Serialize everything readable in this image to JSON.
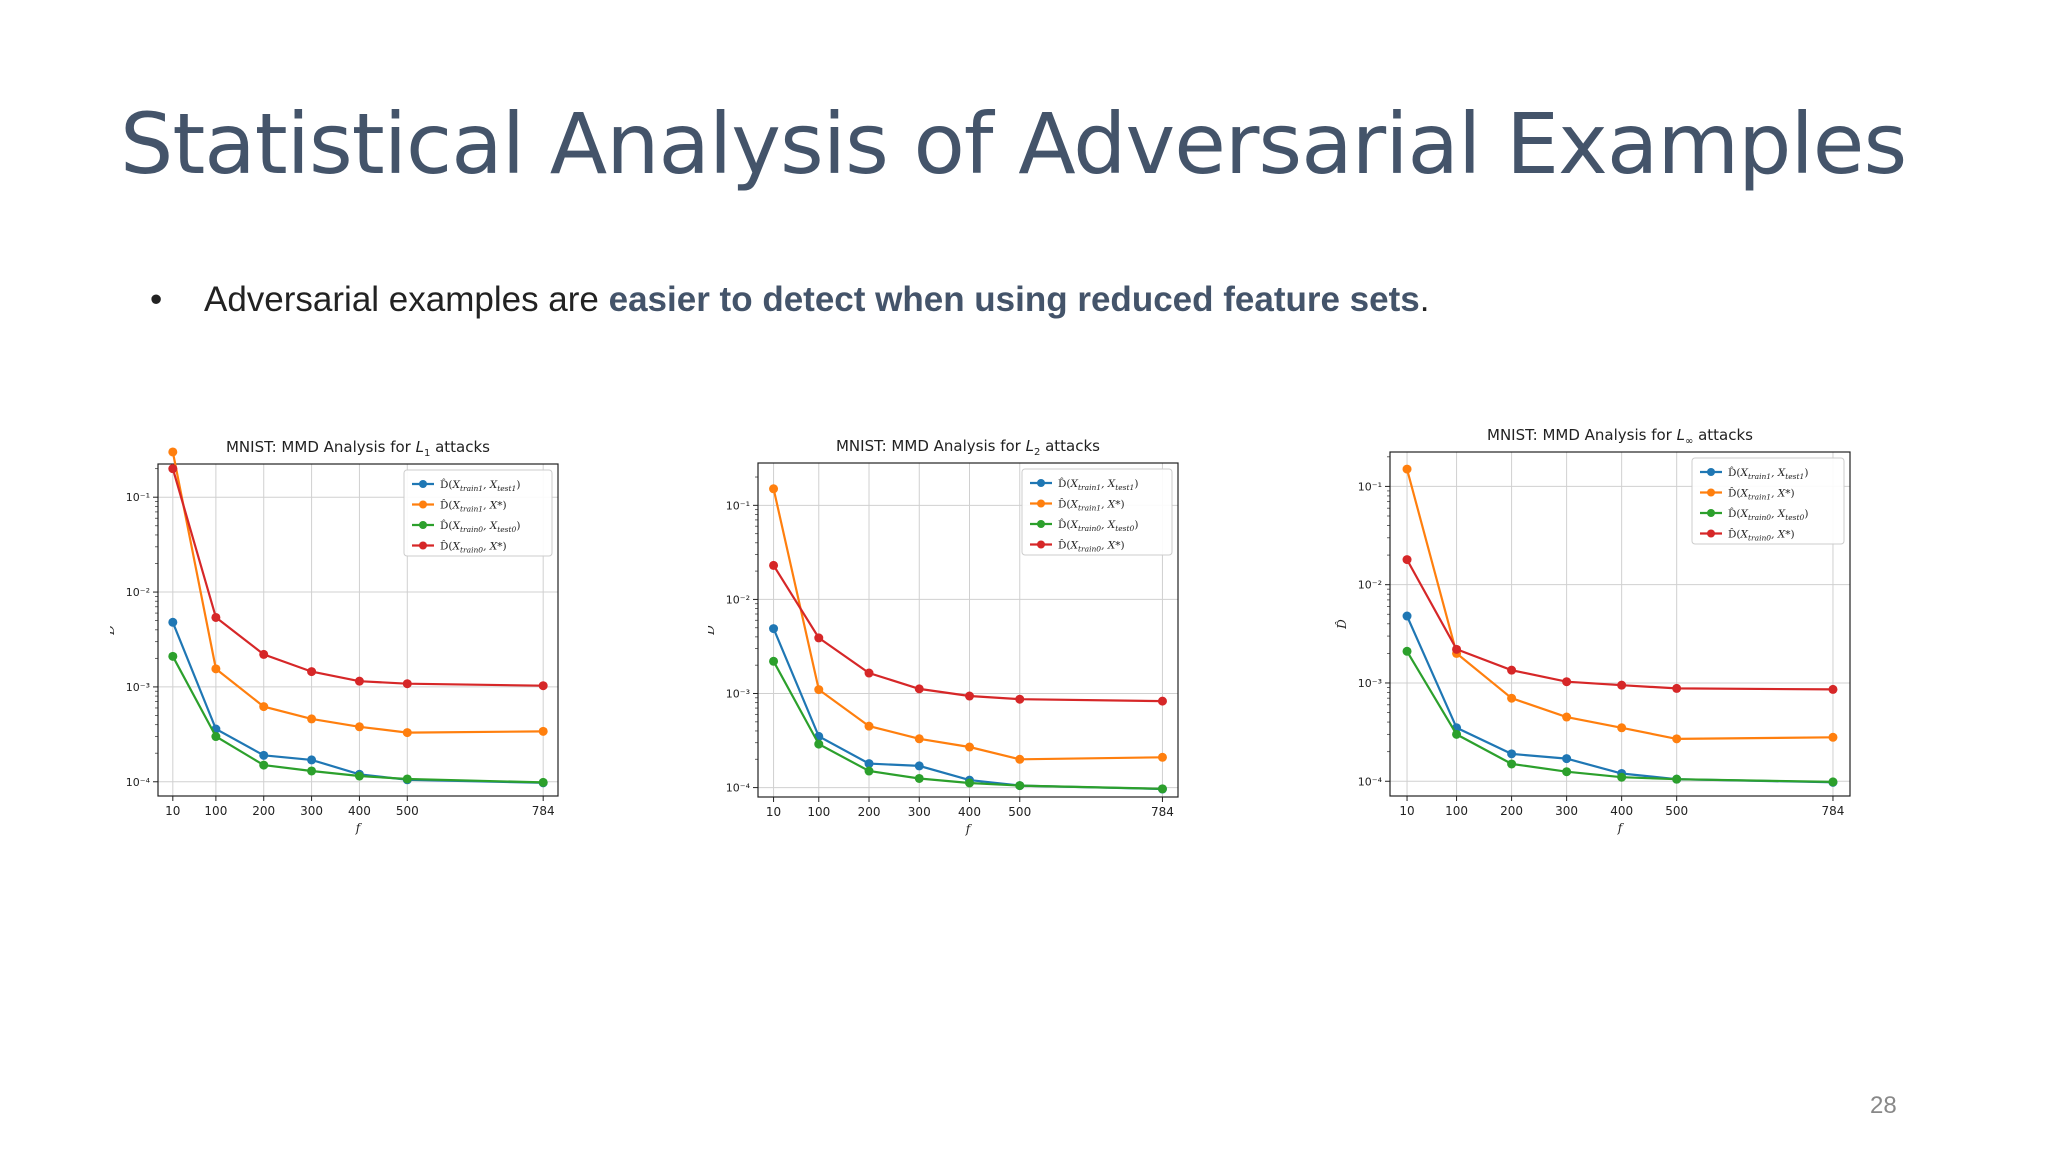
{
  "slide": {
    "title": "Statistical Analysis of Adversarial Examples",
    "bullet_prefix": "Adversarial examples are ",
    "bullet_emphasis": "easier to detect when using reduced feature sets",
    "bullet_suffix": ".",
    "bullet_marker": "•",
    "page_number": "28"
  },
  "colors": {
    "title": "#44546a",
    "series": [
      "#1f77b4",
      "#ff7f0e",
      "#2ca02c",
      "#d62728"
    ]
  },
  "chart_data": [
    {
      "type": "line",
      "title_prefix": "MNIST: MMD Analysis for ",
      "title_math": "L",
      "title_sub": "1",
      "title_suffix": " attacks",
      "xlabel": "f",
      "ylabel": "D̂",
      "x": [
        10,
        100,
        200,
        300,
        400,
        500,
        784
      ],
      "xticks": [
        "10",
        "100",
        "200",
        "300",
        "400",
        "500",
        "784"
      ],
      "yscale": "log",
      "ylim_exp": [
        -4.15,
        -0.65
      ],
      "ytick_exps": [
        -4,
        -3,
        -2,
        -1
      ],
      "yticks": [
        "10⁻⁴",
        "10⁻³",
        "10⁻²",
        "10⁻¹"
      ],
      "grid": true,
      "legend": "top-right",
      "series": [
        {
          "name": "D̂(X_train1, X_test1)",
          "values": [
            0.0048,
            0.00036,
            0.00019,
            0.00017,
            0.00012,
            0.000105,
            9.75e-05
          ]
        },
        {
          "name": "D̂(X_train1, X*)",
          "values": [
            0.3,
            0.00155,
            0.00062,
            0.00046,
            0.00038,
            0.00033,
            0.00034
          ]
        },
        {
          "name": "D̂(X_train0, X_test0)",
          "values": [
            0.0021,
            0.0003,
            0.00015,
            0.00013,
            0.000115,
            0.000107,
            9.85e-05
          ]
        },
        {
          "name": "D̂(X_train0, X*)",
          "values": [
            0.2,
            0.0054,
            0.0022,
            0.00145,
            0.00115,
            0.00108,
            0.00103
          ]
        }
      ]
    },
    {
      "type": "line",
      "title_prefix": "MNIST: MMD Analysis for ",
      "title_math": "L",
      "title_sub": "2",
      "title_suffix": " attacks",
      "xlabel": "f",
      "ylabel": "D̂",
      "x": [
        10,
        100,
        200,
        300,
        400,
        500,
        784
      ],
      "xticks": [
        "10",
        "100",
        "200",
        "300",
        "400",
        "500",
        "784"
      ],
      "yscale": "log",
      "ylim_exp": [
        -4.1,
        -0.55
      ],
      "ytick_exps": [
        -4,
        -3,
        -2,
        -1
      ],
      "yticks": [
        "10⁻⁴",
        "10⁻³",
        "10⁻²",
        "10⁻¹"
      ],
      "grid": true,
      "legend": "top-right",
      "series": [
        {
          "name": "D̂(X_train1, X_test1)",
          "values": [
            0.0049,
            0.00035,
            0.00018,
            0.00017,
            0.00012,
            0.000105,
            9.65e-05
          ]
        },
        {
          "name": "D̂(X_train1, X*)",
          "values": [
            0.15,
            0.0011,
            0.00045,
            0.00033,
            0.00027,
            0.0002,
            0.00021
          ]
        },
        {
          "name": "D̂(X_train0, X_test0)",
          "values": [
            0.0022,
            0.00029,
            0.00015,
            0.000125,
            0.000112,
            0.000105,
            9.7e-05
          ]
        },
        {
          "name": "D̂(X_train0, X*)",
          "values": [
            0.023,
            0.0039,
            0.00165,
            0.00112,
            0.00094,
            0.00087,
            0.00083
          ]
        }
      ]
    },
    {
      "type": "line",
      "title_prefix": "MNIST: MMD Analysis for ",
      "title_math": "L",
      "title_sub": "∞",
      "title_suffix": " attacks",
      "xlabel": "f",
      "ylabel": "D̂",
      "x": [
        10,
        100,
        200,
        300,
        400,
        500,
        784
      ],
      "xticks": [
        "10",
        "100",
        "200",
        "300",
        "400",
        "500",
        "784"
      ],
      "yscale": "log",
      "ylim_exp": [
        -4.15,
        -0.65
      ],
      "ytick_exps": [
        -4,
        -3,
        -2,
        -1
      ],
      "yticks": [
        "10⁻⁴",
        "10⁻³",
        "10⁻²",
        "10⁻¹"
      ],
      "grid": true,
      "legend": "top-right",
      "series": [
        {
          "name": "D̂(X_train1, X_test1)",
          "values": [
            0.0048,
            0.00035,
            0.00019,
            0.00017,
            0.00012,
            0.000105,
            9.75e-05
          ]
        },
        {
          "name": "D̂(X_train1, X*)",
          "values": [
            0.15,
            0.002,
            0.0007,
            0.00045,
            0.00035,
            0.00027,
            0.00028
          ]
        },
        {
          "name": "D̂(X_train0, X_test0)",
          "values": [
            0.0021,
            0.0003,
            0.00015,
            0.000125,
            0.00011,
            0.000105,
            9.85e-05
          ]
        },
        {
          "name": "D̂(X_train0, X*)",
          "values": [
            0.018,
            0.0022,
            0.00135,
            0.00103,
            0.00095,
            0.00088,
            0.00086
          ]
        }
      ]
    }
  ]
}
